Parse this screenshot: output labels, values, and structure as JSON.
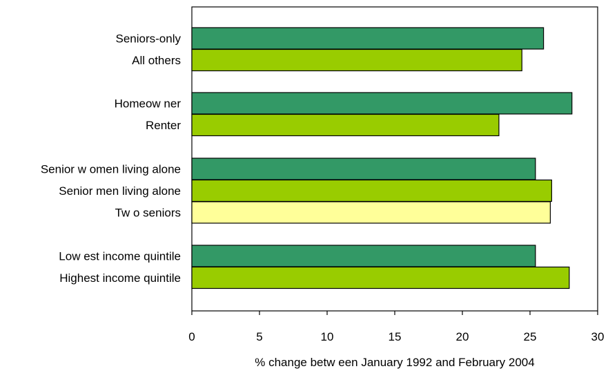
{
  "chart_data": {
    "type": "bar",
    "orientation": "horizontal",
    "xlabel": "% change betw een January 1992 and February 2004",
    "xlim": [
      0,
      30
    ],
    "xticks": [
      0,
      5,
      10,
      15,
      20,
      25,
      30
    ],
    "grid": false,
    "legend": "none",
    "groups": [
      {
        "bars": [
          {
            "label": "Seniors-only",
            "value": 26.0,
            "color": "#339966"
          },
          {
            "label": "All others",
            "value": 24.4,
            "color": "#99cc00"
          }
        ]
      },
      {
        "bars": [
          {
            "label": "Homeow ner",
            "value": 28.1,
            "color": "#339966"
          },
          {
            "label": "Renter",
            "value": 22.7,
            "color": "#99cc00"
          }
        ]
      },
      {
        "bars": [
          {
            "label": "Senior w omen living alone",
            "value": 25.4,
            "color": "#339966"
          },
          {
            "label": "Senior men living alone",
            "value": 26.6,
            "color": "#99cc00"
          },
          {
            "label": "Tw o seniors",
            "value": 26.5,
            "color": "#ffff99"
          }
        ]
      },
      {
        "bars": [
          {
            "label": "Low est income quintile",
            "value": 25.4,
            "color": "#339966"
          },
          {
            "label": "Highest income quintile",
            "value": 27.9,
            "color": "#99cc00"
          }
        ]
      }
    ]
  }
}
